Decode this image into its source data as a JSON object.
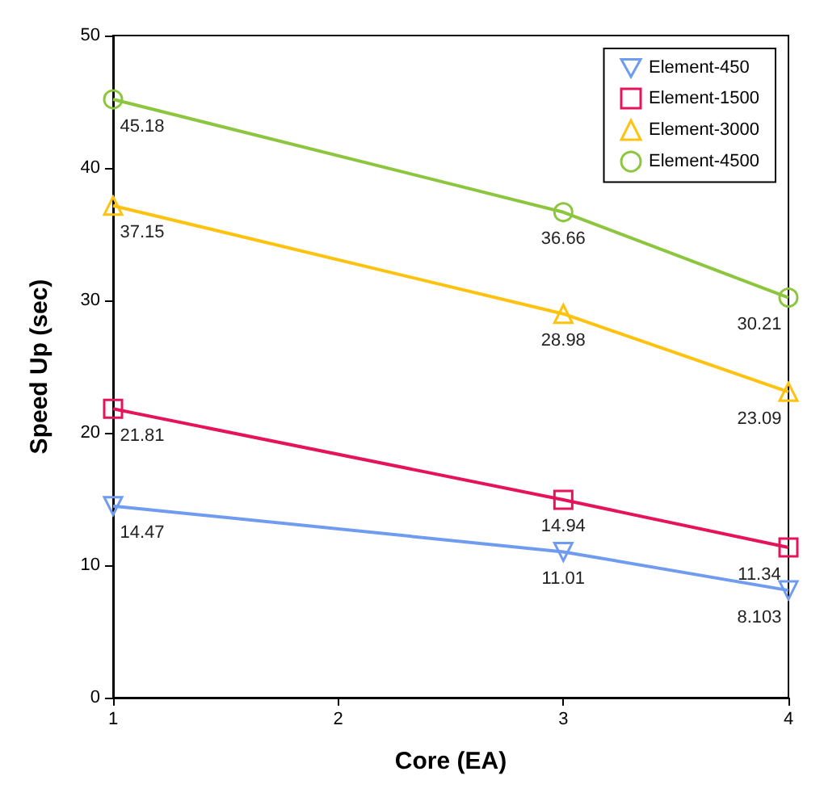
{
  "chart_data": {
    "type": "line",
    "xlabel": "Core (EA)",
    "ylabel": "Speed Up (sec)",
    "x": [
      1,
      3,
      4
    ],
    "series": [
      {
        "name": "Element-450",
        "color": "#6f9bf0",
        "values": [
          14.47,
          11.01,
          8.103
        ],
        "marker": "triangle-down"
      },
      {
        "name": "Element-1500",
        "color": "#e5145a",
        "values": [
          21.81,
          14.94,
          11.34
        ],
        "marker": "square"
      },
      {
        "name": "Element-3000",
        "color": "#ffc20e",
        "values": [
          37.15,
          28.98,
          23.09
        ],
        "marker": "triangle"
      },
      {
        "name": "Element-4500",
        "color": "#8cc63f",
        "values": [
          45.18,
          36.66,
          30.21
        ],
        "marker": "circle"
      }
    ],
    "xlim": [
      1,
      4
    ],
    "xticks": [
      1,
      2,
      3,
      4
    ],
    "ylim": [
      0,
      50
    ],
    "yticks": [
      0,
      10,
      20,
      30,
      40,
      50
    ],
    "grid": false,
    "legend": "top right",
    "data_labels": true,
    "line_style": "solid"
  }
}
